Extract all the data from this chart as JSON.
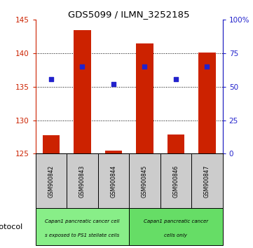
{
  "title": "GDS5099 / ILMN_3252185",
  "samples": [
    "GSM900842",
    "GSM900843",
    "GSM900844",
    "GSM900845",
    "GSM900846",
    "GSM900847"
  ],
  "bar_values": [
    127.8,
    143.5,
    125.5,
    141.5,
    127.9,
    140.1
  ],
  "bar_base": 125.0,
  "percentile_values": [
    55.5,
    65.0,
    52.0,
    65.0,
    55.5,
    65.0
  ],
  "ylim_left": [
    125,
    145
  ],
  "ylim_right": [
    0,
    100
  ],
  "yticks_left": [
    125,
    130,
    135,
    140,
    145
  ],
  "yticks_right": [
    0,
    25,
    50,
    75,
    100
  ],
  "bar_color": "#cc2200",
  "dot_color": "#2222cc",
  "bg_color": "#ffffff",
  "group1_label_line1": "Capan1 pancreatic cancer cell",
  "group1_label_line2": "s exposed to PS1 stellate cells",
  "group2_label_line1": "Capan1 pancreatic cancer",
  "group2_label_line2": "cells only",
  "group1_color": "#88ee88",
  "group2_color": "#66dd66",
  "sample_bg_color": "#cccccc",
  "protocol_label": "protocol"
}
